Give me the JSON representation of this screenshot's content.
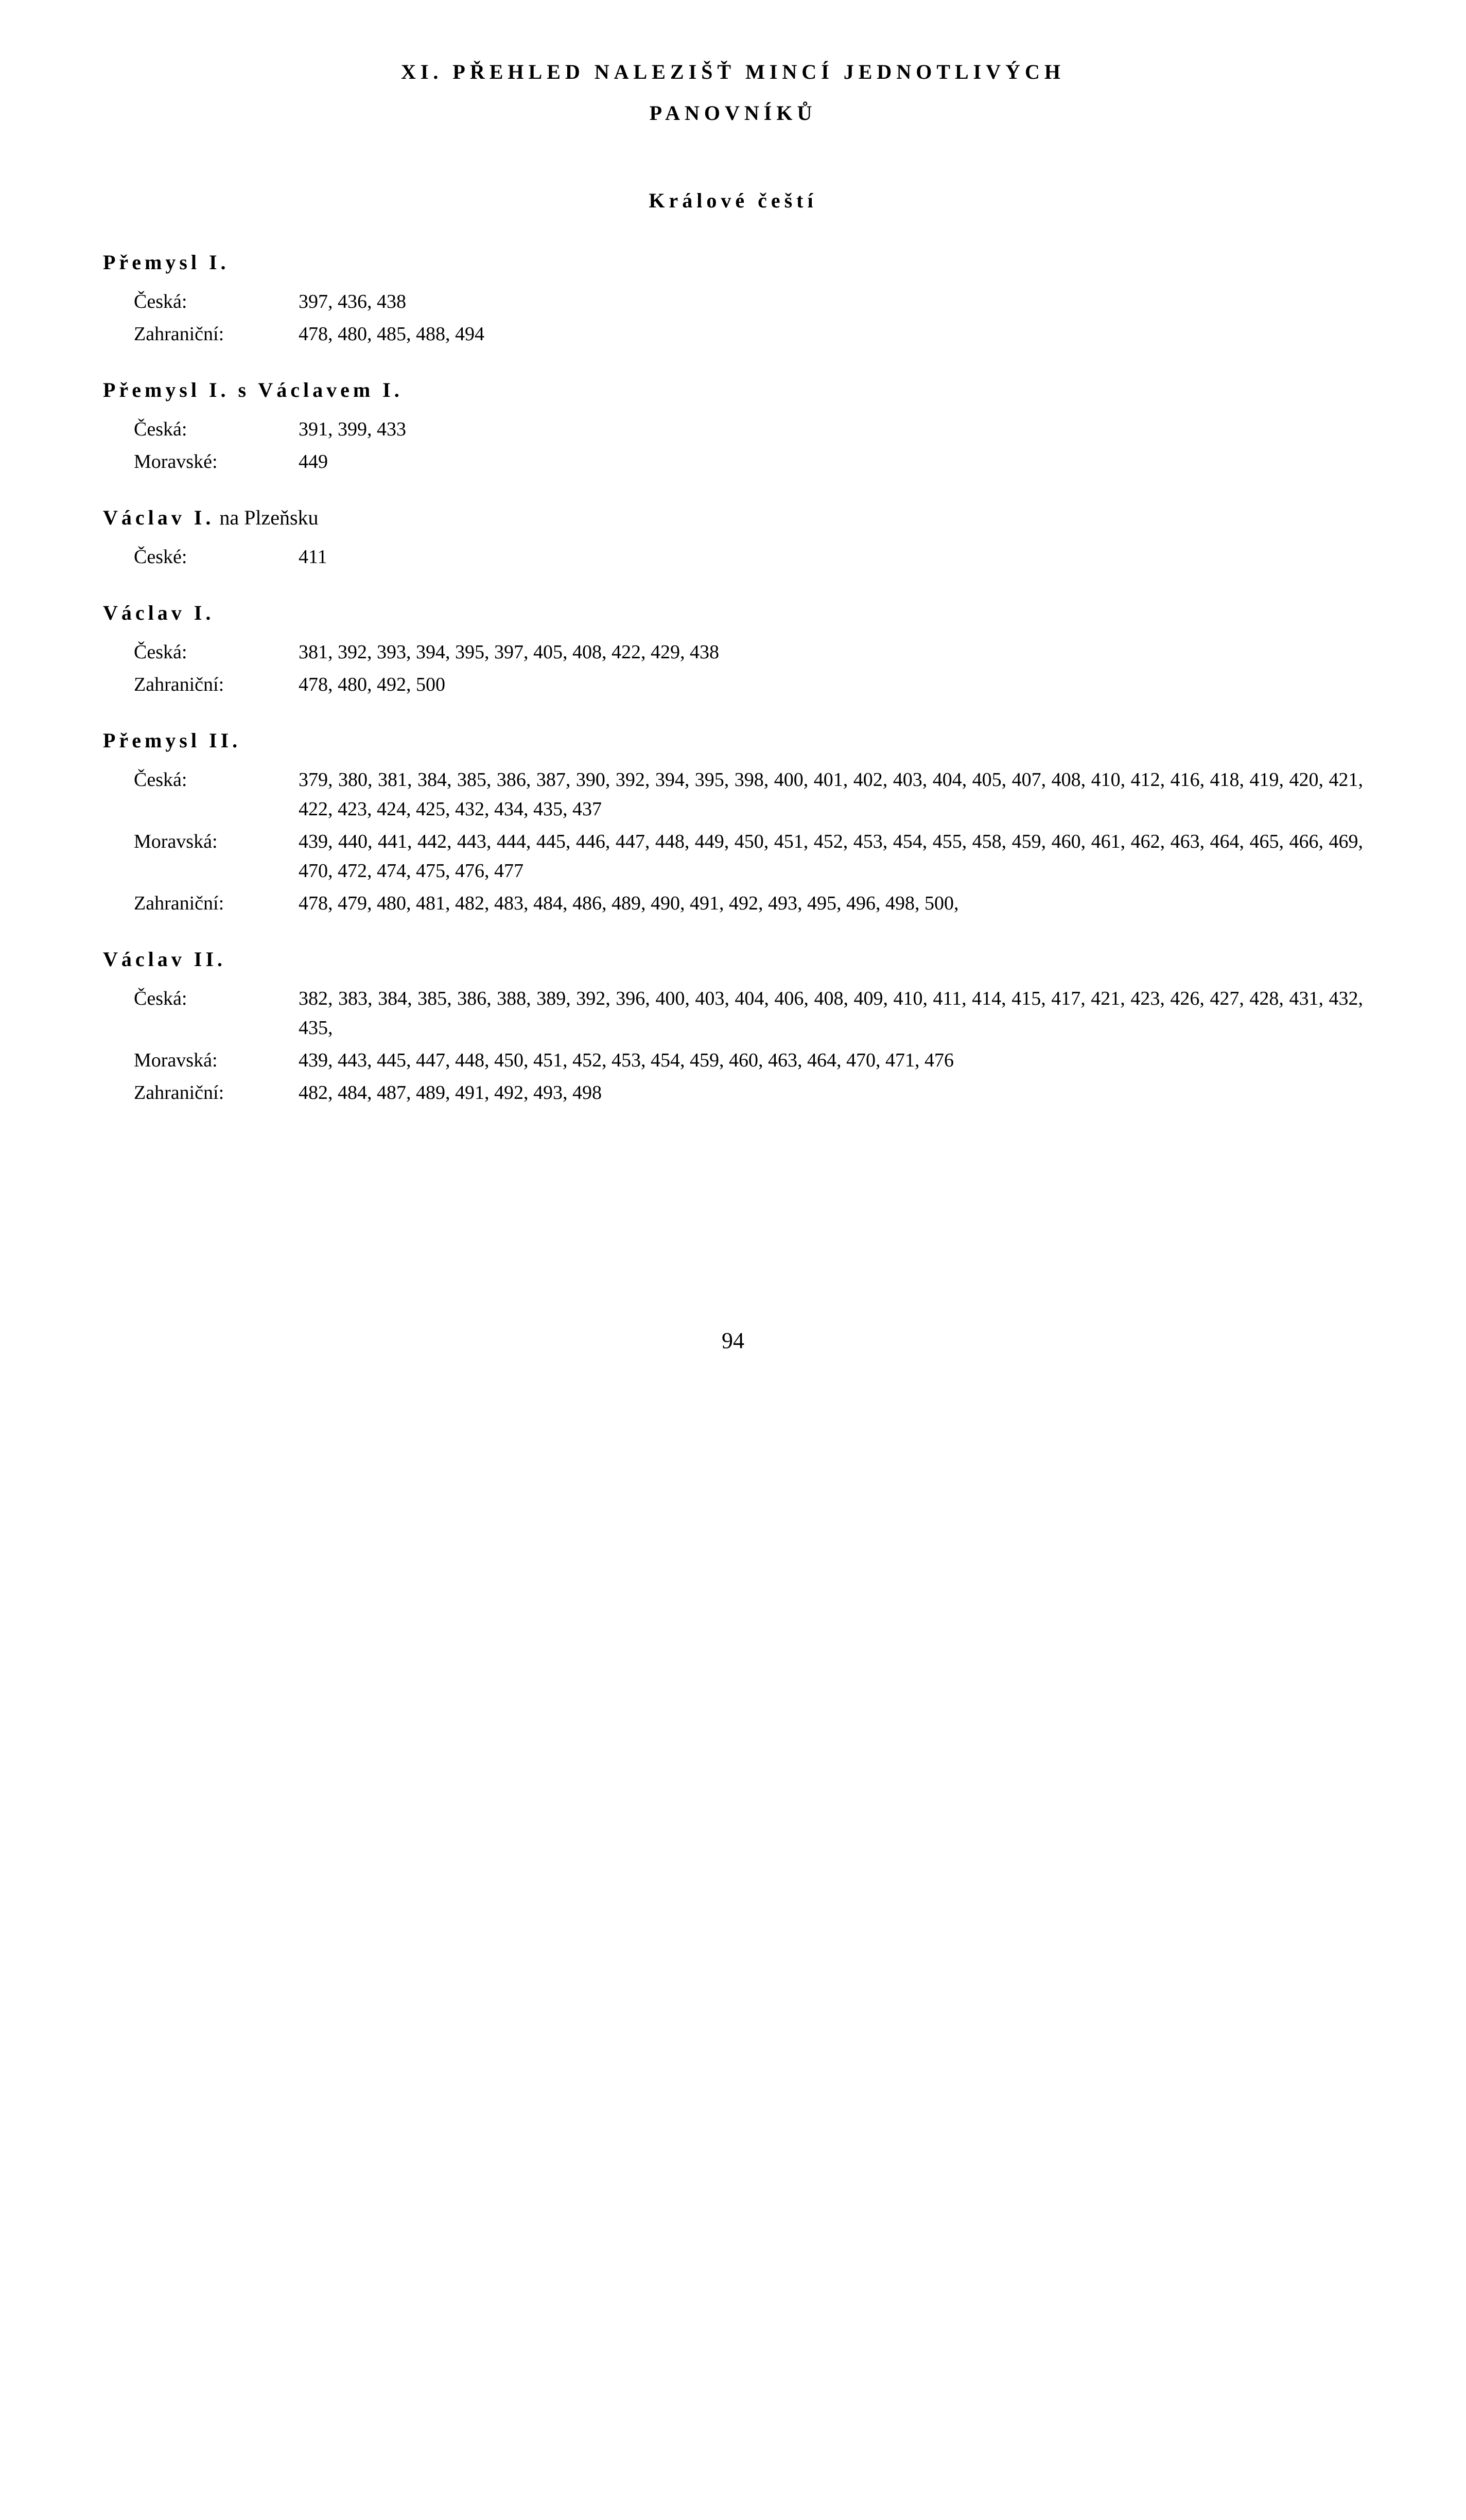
{
  "page_number": "94",
  "chapter_title": "XI. PŘEHLED NALEZIŠŤ MINCÍ JEDNOTLIVÝCH",
  "chapter_title_line2": "PANOVNÍKŮ",
  "section_title": "Králové čeští",
  "rulers": [
    {
      "name": "Přemysl I.",
      "suffix": "",
      "entries": [
        {
          "label": "Česká:",
          "values": "397, 436, 438"
        },
        {
          "label": "Zahraniční:",
          "values": "478, 480, 485, 488, 494"
        }
      ]
    },
    {
      "name": "Přemysl I. s Václavem I.",
      "suffix": "",
      "entries": [
        {
          "label": "Česká:",
          "values": "391, 399, 433"
        },
        {
          "label": "Moravské:",
          "values": "449"
        }
      ]
    },
    {
      "name": "Václav I.",
      "suffix": " na Plzeňsku",
      "entries": [
        {
          "label": "České:",
          "values": "411"
        }
      ]
    },
    {
      "name": "Václav I.",
      "suffix": "",
      "entries": [
        {
          "label": "Česká:",
          "values": "381, 392, 393, 394, 395, 397, 405, 408, 422, 429, 438"
        },
        {
          "label": "Zahraniční:",
          "values": "478, 480, 492, 500"
        }
      ]
    },
    {
      "name": "Přemysl II.",
      "suffix": "",
      "entries": [
        {
          "label": "Česká:",
          "values": "379, 380, 381, 384, 385, 386, 387, 390, 392, 394, 395, 398, 400, 401, 402, 403, 404, 405, 407, 408, 410, 412, 416, 418, 419, 420, 421, 422, 423, 424, 425, 432, 434, 435, 437"
        },
        {
          "label": "Moravská:",
          "values": "439, 440, 441, 442, 443, 444, 445, 446, 447, 448, 449, 450, 451, 452, 453, 454, 455, 458, 459, 460, 461, 462, 463, 464, 465, 466, 469, 470, 472, 474, 475, 476, 477"
        },
        {
          "label": "Zahraniční:",
          "values": "478, 479, 480, 481, 482, 483, 484, 486, 489, 490, 491, 492, 493, 495, 496, 498, 500,"
        }
      ]
    },
    {
      "name": "Václav II.",
      "suffix": "",
      "entries": [
        {
          "label": "Česká:",
          "values": "382, 383, 384, 385, 386, 388, 389, 392, 396, 400, 403, 404, 406, 408, 409, 410, 411, 414, 415, 417, 421, 423, 426, 427, 428, 431, 432, 435,"
        },
        {
          "label": "Moravská:",
          "values": "439, 443, 445, 447, 448, 450, 451, 452, 453, 454, 459, 460, 463, 464, 470, 471, 476"
        },
        {
          "label": "Zahraniční:",
          "values": "482, 484, 487, 489, 491, 492, 493, 498"
        }
      ]
    }
  ]
}
